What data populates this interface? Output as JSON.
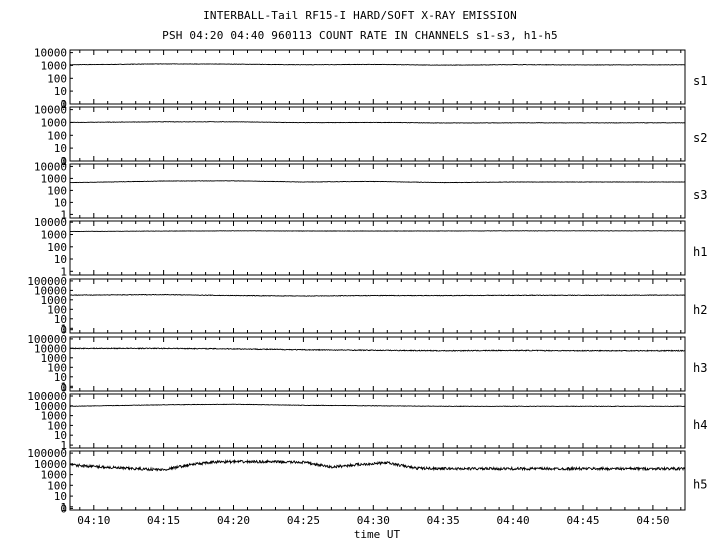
{
  "chart_data": {
    "type": "line",
    "title": "INTERBALL-Tail RF15-I HARD/SOFT X-RAY EMISSION",
    "subtitle": "PSH 04:20 04:40 960113  COUNT RATE IN CHANNELS s1-s3, h1-h5",
    "xlabel": "time UT",
    "x_ticks": [
      "04:10",
      "04:15",
      "04:20",
      "04:25",
      "04:30",
      "04:35",
      "04:40",
      "04:45",
      "04:50"
    ],
    "x_tick_minutes": [
      250,
      255,
      260,
      265,
      270,
      275,
      280,
      285,
      290
    ],
    "xlim_minutes": [
      248.3,
      292.3
    ],
    "y_scale": "log",
    "series": [
      {
        "name": "s1",
        "y_ticks": [
          "0",
          "1",
          "10",
          "100",
          "1000",
          "10000"
        ],
        "ylim_log": [
          0,
          4.2
        ],
        "points": [
          [
            248.3,
            3.05
          ],
          [
            255,
            3.12
          ],
          [
            260,
            3.1
          ],
          [
            265,
            3.05
          ],
          [
            270,
            3.08
          ],
          [
            275,
            3.02
          ],
          [
            280,
            3.06
          ],
          [
            285,
            3.04
          ],
          [
            292.3,
            3.05
          ]
        ],
        "noise": 0.015
      },
      {
        "name": "s2",
        "y_ticks": [
          "0",
          "1",
          "10",
          "100",
          "1000",
          "10000"
        ],
        "ylim_log": [
          0,
          4.2
        ],
        "points": [
          [
            248.3,
            3.0
          ],
          [
            255,
            3.05
          ],
          [
            260,
            3.05
          ],
          [
            265,
            2.98
          ],
          [
            270,
            3.0
          ],
          [
            275,
            2.96
          ],
          [
            280,
            2.97
          ],
          [
            285,
            2.97
          ],
          [
            292.3,
            2.97
          ]
        ],
        "noise": 0.015
      },
      {
        "name": "s3",
        "y_ticks": [
          "1",
          "10",
          "100",
          "1000",
          "10000"
        ],
        "ylim_log": [
          -0.3,
          4.2
        ],
        "points": [
          [
            248.3,
            2.65
          ],
          [
            255,
            2.78
          ],
          [
            260,
            2.8
          ],
          [
            265,
            2.7
          ],
          [
            270,
            2.75
          ],
          [
            275,
            2.65
          ],
          [
            280,
            2.7
          ],
          [
            285,
            2.7
          ],
          [
            292.3,
            2.7
          ]
        ],
        "noise": 0.015
      },
      {
        "name": "h1",
        "y_ticks": [
          "1",
          "10",
          "100",
          "1000",
          "10000"
        ],
        "ylim_log": [
          -0.3,
          4.1
        ],
        "points": [
          [
            248.3,
            3.25
          ],
          [
            260,
            3.3
          ],
          [
            270,
            3.28
          ],
          [
            280,
            3.3
          ],
          [
            292.3,
            3.3
          ]
        ],
        "noise": 0.012
      },
      {
        "name": "h2",
        "y_ticks": [
          "0",
          "1",
          "10",
          "100",
          "1000",
          "10000",
          "100000"
        ],
        "ylim_log": [
          -0.5,
          5.2
        ],
        "points": [
          [
            248.3,
            3.5
          ],
          [
            255,
            3.55
          ],
          [
            260,
            3.45
          ],
          [
            265,
            3.4
          ],
          [
            270,
            3.45
          ],
          [
            275,
            3.45
          ],
          [
            280,
            3.48
          ],
          [
            285,
            3.48
          ],
          [
            292.3,
            3.5
          ]
        ],
        "noise": 0.03
      },
      {
        "name": "h3",
        "y_ticks": [
          "0",
          "1",
          "10",
          "100",
          "1000",
          "10000",
          "100000"
        ],
        "ylim_log": [
          -0.5,
          5.2
        ],
        "points": [
          [
            248.3,
            4.0
          ],
          [
            255,
            4.0
          ],
          [
            260,
            3.95
          ],
          [
            265,
            3.85
          ],
          [
            270,
            3.8
          ],
          [
            275,
            3.75
          ],
          [
            280,
            3.78
          ],
          [
            285,
            3.75
          ],
          [
            292.3,
            3.75
          ]
        ],
        "noise": 0.045
      },
      {
        "name": "h4",
        "y_ticks": [
          "1",
          "10",
          "100",
          "1000",
          "10000",
          "100000"
        ],
        "ylim_log": [
          -0.3,
          5.2
        ],
        "points": [
          [
            248.3,
            3.95
          ],
          [
            255,
            4.1
          ],
          [
            260,
            4.15
          ],
          [
            265,
            4.05
          ],
          [
            270,
            4.0
          ],
          [
            275,
            3.95
          ],
          [
            280,
            3.95
          ],
          [
            285,
            3.95
          ],
          [
            292.3,
            3.95
          ]
        ],
        "noise": 0.02
      },
      {
        "name": "h5",
        "y_ticks": [
          "0",
          "1",
          "10",
          "100",
          "1000",
          "10000",
          "100000"
        ],
        "ylim_log": [
          -0.3,
          5.2
        ],
        "points": [
          [
            248.3,
            3.9
          ],
          [
            252,
            3.6
          ],
          [
            255,
            3.45
          ],
          [
            257,
            3.95
          ],
          [
            259,
            4.2
          ],
          [
            262,
            4.2
          ],
          [
            265,
            4.15
          ],
          [
            267,
            3.7
          ],
          [
            269,
            3.95
          ],
          [
            271,
            4.1
          ],
          [
            273,
            3.6
          ],
          [
            276,
            3.55
          ],
          [
            280,
            3.55
          ],
          [
            285,
            3.55
          ],
          [
            292.3,
            3.55
          ]
        ],
        "noise": 0.12
      }
    ],
    "grid": false,
    "legend": "none"
  }
}
